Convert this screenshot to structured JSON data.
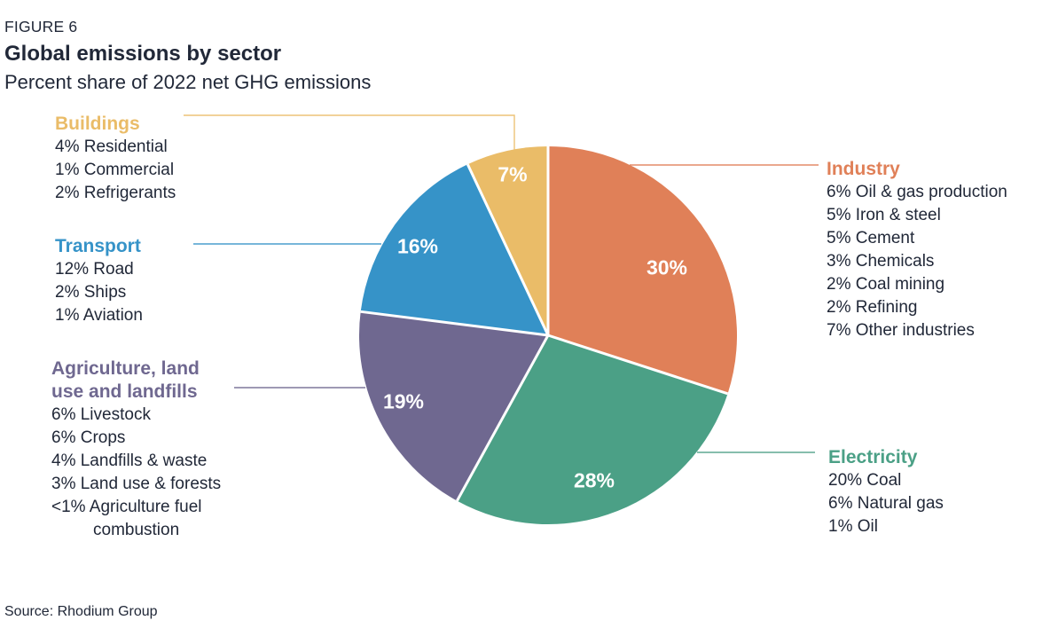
{
  "figure_label": "FIGURE 6",
  "title": "Global emissions by sector",
  "subtitle": "Percent share of 2022 net GHG emissions",
  "source": "Source: Rhodium Group",
  "colors": {
    "text_dark": "#212838",
    "value_label_text": "#ffffff",
    "industry": "#E08058",
    "electricity": "#4BA086",
    "agriculture": "#6F6890",
    "transport": "#3693C8",
    "buildings": "#EABC68"
  },
  "chart_data": {
    "type": "pie",
    "title": "Global emissions by sector",
    "subtitle": "Percent share of 2022 net GHG emissions",
    "units": "percent share of 2022 net GHG emissions",
    "start_angle_deg": 0,
    "direction": "clockwise",
    "total": 100,
    "legend_position": "labels around pie with leader lines",
    "segments": [
      {
        "label": "Industry",
        "legend_title_lines": [
          "Industry"
        ],
        "value": 30,
        "display": "30%",
        "color": "#E08058",
        "breakdown": [
          "6% Oil & gas production",
          "5% Iron & steel",
          "5% Cement",
          "3% Chemicals",
          "2% Coal mining",
          "2% Refining",
          "7% Other industries"
        ]
      },
      {
        "label": "Electricity",
        "legend_title_lines": [
          "Electricity"
        ],
        "value": 28,
        "display": "28%",
        "color": "#4BA086",
        "breakdown": [
          "20% Coal",
          "6% Natural gas",
          "1% Oil"
        ]
      },
      {
        "label": "Agriculture, land use and landfills",
        "legend_title_lines": [
          "Agriculture, land",
          "use and landfills"
        ],
        "value": 19,
        "display": "19%",
        "color": "#6F6890",
        "breakdown": [
          "6% Livestock",
          "6% Crops",
          "4% Landfills & waste",
          "3% Land use & forests",
          "<1% Agriculture fuel combustion"
        ]
      },
      {
        "label": "Transport",
        "legend_title_lines": [
          "Transport"
        ],
        "value": 16,
        "display": "16%",
        "color": "#3693C8",
        "breakdown": [
          "12% Road",
          "2% Ships",
          "1% Aviation"
        ]
      },
      {
        "label": "Buildings",
        "legend_title_lines": [
          "Buildings"
        ],
        "value": 7,
        "display": "7%",
        "color": "#EABC68",
        "breakdown": [
          "4% Residential",
          "1% Commercial",
          "2% Refrigerants"
        ]
      }
    ]
  }
}
